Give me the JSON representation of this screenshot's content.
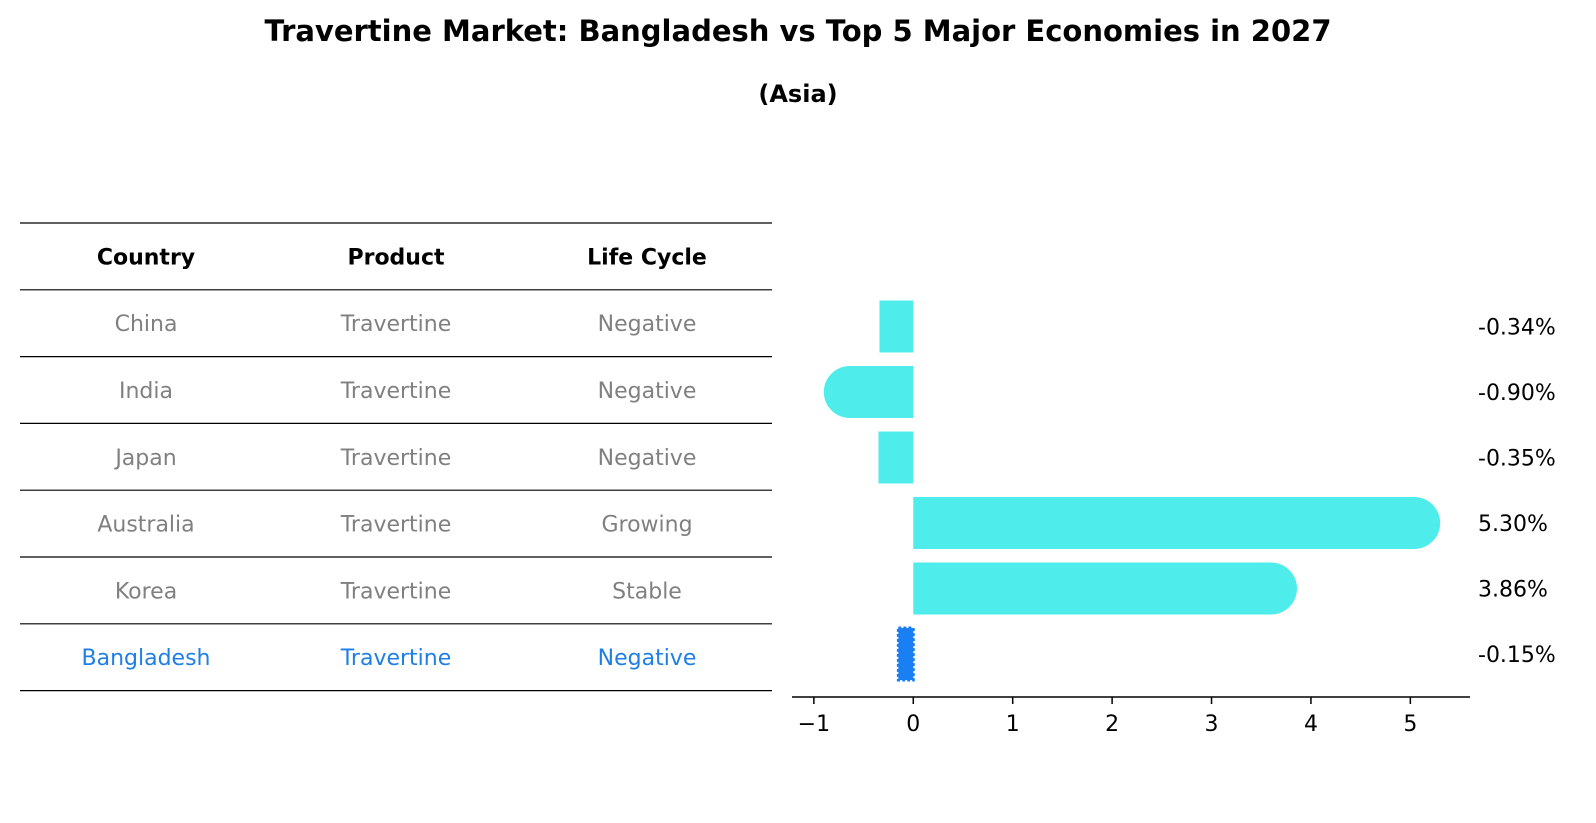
{
  "chart_data": {
    "title": "Travertine Market: Bangladesh vs Top 5 Major Economies in 2027",
    "subtitle": "(Asia)",
    "type": "table",
    "table": {
      "headers": [
        "Country",
        "Product",
        "Life Cycle"
      ],
      "rows": [
        [
          "China",
          "Travertine",
          "Negative"
        ],
        [
          "India",
          "Travertine",
          "Negative"
        ],
        [
          "Japan",
          "Travertine",
          "Negative"
        ],
        [
          "Australia",
          "Travertine",
          "Growing"
        ],
        [
          "Korea",
          "Travertine",
          "Stable"
        ],
        [
          "Bangladesh",
          "Travertine",
          "Negative"
        ]
      ],
      "highlight_row": 5
    },
    "bar_chart": {
      "type": "bar",
      "orientation": "horizontal",
      "categories": [
        "China",
        "India",
        "Japan",
        "Australia",
        "Korea",
        "Bangladesh"
      ],
      "values": [
        -0.34,
        -0.9,
        -0.35,
        5.3,
        3.86,
        -0.15
      ],
      "value_labels": [
        "-0.34%",
        "-0.90%",
        "-0.35%",
        "5.30%",
        "3.86%",
        "-0.15%"
      ],
      "xlim": [
        -1.22,
        5.6
      ],
      "xticks": [
        -1,
        0,
        1,
        2,
        3,
        4,
        5
      ],
      "xtick_labels": [
        "−1",
        "0",
        "1",
        "2",
        "3",
        "4",
        "5"
      ],
      "grid": false
    }
  },
  "colors": {
    "bar": "#4EEDEB",
    "highlight": "#1E7FE6",
    "highlight_bar": "#1A7FF2",
    "muted_text": "#808080",
    "text": "#000000",
    "line": "#000000"
  }
}
